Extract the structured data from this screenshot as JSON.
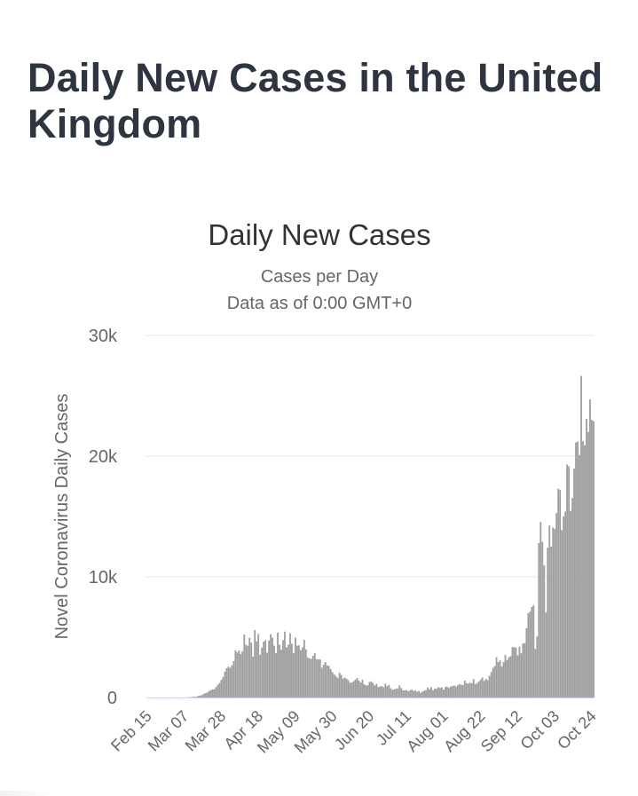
{
  "page": {
    "heading": "Daily New Cases in the United Kingdom"
  },
  "chart_data": {
    "type": "bar",
    "title": "Daily New Cases",
    "subtitle_line1": "Cases per Day",
    "subtitle_line2": "Data as of 0:00 GMT+0",
    "ylabel": "Novel Coronavirus Daily Cases",
    "xlabel": "",
    "ylim": [
      0,
      30000
    ],
    "y_ticks": [
      0,
      10000,
      20000,
      30000
    ],
    "y_tick_labels": [
      "0",
      "10k",
      "20k",
      "30k"
    ],
    "x_start": "Feb 15",
    "x_tick_labels": [
      "Feb 15",
      "Mar 07",
      "Mar 28",
      "Apr 18",
      "May 09",
      "May 30",
      "Jun 20",
      "Jul 11",
      "Aug 01",
      "Aug 22",
      "Sep 12",
      "Oct 03",
      "Oct 24"
    ],
    "x_tick_day_index": [
      0,
      21,
      42,
      63,
      84,
      105,
      126,
      147,
      168,
      189,
      210,
      231,
      252
    ],
    "series": [
      {
        "name": "Daily Cases",
        "color": "#9e9e9e",
        "values": [
          0,
          0,
          0,
          0,
          0,
          0,
          0,
          0,
          0,
          0,
          0,
          0,
          0,
          0,
          0,
          0,
          2,
          1,
          0,
          0,
          0,
          0,
          5,
          13,
          20,
          35,
          50,
          60,
          70,
          130,
          160,
          210,
          290,
          370,
          410,
          540,
          600,
          680,
          680,
          870,
          1050,
          1220,
          1460,
          1680,
          2130,
          2430,
          2550,
          2460,
          2660,
          3010,
          3910,
          3740,
          3900,
          3610,
          3850,
          5210,
          4370,
          4290,
          4940,
          4540,
          3390,
          5590,
          4660,
          5270,
          3550,
          4130,
          4620,
          4750,
          3710,
          4710,
          5240,
          4960,
          4290,
          3680,
          5380,
          4380,
          3950,
          4750,
          5460,
          4150,
          4380,
          5320,
          4460,
          3690,
          4950,
          4290,
          4320,
          3920,
          4150,
          4780,
          3990,
          3330,
          3230,
          3210,
          3450,
          3670,
          3180,
          3170,
          3150,
          2470,
          2730,
          2940,
          2660,
          2610,
          2350,
          2100,
          1920,
          1760,
          1610,
          2060,
          1870,
          1570,
          1650,
          1550,
          1430,
          1220,
          1230,
          1350,
          1470,
          1610,
          1410,
          1240,
          1470,
          1100,
          1000,
          1010,
          1290,
          1340,
          1200,
          990,
          1130,
          870,
          910,
          960,
          840,
          1140,
          940,
          1040,
          770,
          650,
          680,
          720,
          760,
          1010,
          790,
          590,
          580,
          610,
          520,
          590,
          670,
          550,
          590,
          480,
          540,
          390,
          490,
          570,
          610,
          820,
          680,
          860,
          600,
          740,
          720,
          850,
          790,
          850,
          640,
          870,
          900,
          800,
          920,
          940,
          1000,
          900,
          1020,
          1100,
          1050,
          1050,
          1400,
          1200,
          1140,
          1230,
          1180,
          1520,
          1120,
          1200,
          1330,
          1500,
          1660,
          1380,
          1540,
          1430,
          1790,
          2100,
          2460,
          2600,
          3340,
          2930,
          3080,
          2560,
          2950,
          3520,
          3100,
          3330,
          3430,
          4160,
          4170,
          4120,
          3500,
          4210,
          3660,
          4480,
          4500,
          5730,
          6990,
          7110,
          7500,
          7640,
          4030,
          5050,
          12800,
          14540,
          12900,
          10950,
          7050,
          12410,
          14250,
          12500,
          14080,
          13950,
          15280,
          17300,
          17200,
          13860,
          15000,
          15400,
          19300,
          19150,
          15460,
          16520,
          18960,
          21130,
          21210,
          20100,
          26640,
          21240,
          20900,
          23100,
          22000,
          24700,
          23000,
          22900
        ]
      }
    ]
  }
}
